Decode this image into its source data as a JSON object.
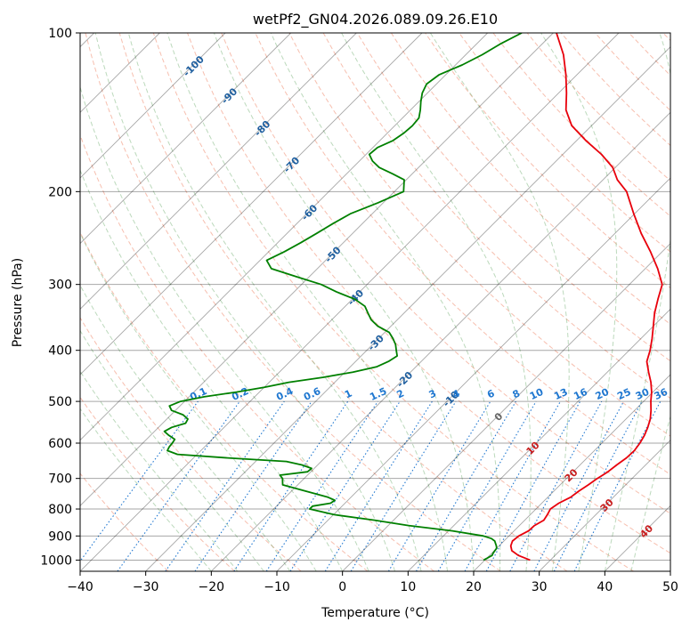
{
  "chart_data": {
    "type": "line",
    "title": "wetPf2_GN04.2026.089.09.26.E10",
    "xlabel": "Temperature (°C)",
    "ylabel": "Pressure (hPa)",
    "xlim": [
      -40,
      50
    ],
    "ylim": [
      1050,
      100
    ],
    "y_scale": "log",
    "grid": true,
    "x_ticks": [
      "−40",
      "−30",
      "−20",
      "−10",
      "0",
      "10",
      "20",
      "30",
      "40",
      "50"
    ],
    "y_ticks": [
      {
        "p": 100,
        "label": "100"
      },
      {
        "p": 200,
        "label": "200"
      },
      {
        "p": 300,
        "label": "300"
      },
      {
        "p": 400,
        "label": "400"
      },
      {
        "p": 500,
        "label": "500"
      },
      {
        "p": 600,
        "label": "600"
      },
      {
        "p": 700,
        "label": "700"
      },
      {
        "p": 800,
        "label": "800"
      },
      {
        "p": 900,
        "label": "900"
      },
      {
        "p": 1000,
        "label": "1000"
      }
    ],
    "isotherm_labels": [
      {
        "t": -100,
        "label": "-100"
      },
      {
        "t": -90,
        "label": "-90"
      },
      {
        "t": -80,
        "label": "-80"
      },
      {
        "t": -70,
        "label": "-70"
      },
      {
        "t": -60,
        "label": "-60"
      },
      {
        "t": -50,
        "label": "-50"
      },
      {
        "t": -40,
        "label": "-40"
      },
      {
        "t": -30,
        "label": "-30"
      },
      {
        "t": -20,
        "label": "-20"
      },
      {
        "t": -10,
        "label": "-10"
      },
      {
        "t": 0,
        "label": "0"
      },
      {
        "t": 10,
        "label": "10"
      },
      {
        "t": 20,
        "label": "20"
      },
      {
        "t": 30,
        "label": "30"
      },
      {
        "t": 40,
        "label": "40"
      }
    ],
    "mixing_ratio_labels": [
      "0.1",
      "0.2",
      "0.4",
      "0.6",
      "1",
      "1.5",
      "2",
      "3",
      "4",
      "6",
      "8",
      "10",
      "13",
      "16",
      "20",
      "25",
      "30",
      "36"
    ],
    "series": [
      {
        "role": "temperature",
        "color": "#e8000b",
        "points": [
          [
            1000,
            26.9
          ],
          [
            980,
            24.4
          ],
          [
            960,
            22.7
          ],
          [
            940,
            21.8
          ],
          [
            920,
            21.3
          ],
          [
            900,
            21.5
          ],
          [
            880,
            22.2
          ],
          [
            860,
            22.3
          ],
          [
            840,
            22.9
          ],
          [
            820,
            22.6
          ],
          [
            800,
            22.2
          ],
          [
            780,
            22.6
          ],
          [
            760,
            23.5
          ],
          [
            740,
            23.8
          ],
          [
            720,
            24.3
          ],
          [
            700,
            24.7
          ],
          [
            680,
            25.3
          ],
          [
            660,
            25.6
          ],
          [
            640,
            26.0
          ],
          [
            620,
            26.1
          ],
          [
            600,
            25.8
          ],
          [
            580,
            25.3
          ],
          [
            560,
            24.6
          ],
          [
            540,
            23.7
          ],
          [
            520,
            22.5
          ],
          [
            500,
            21.1
          ],
          [
            480,
            19.8
          ],
          [
            460,
            18.2
          ],
          [
            440,
            16.3
          ],
          [
            420,
            14.4
          ],
          [
            400,
            13.2
          ],
          [
            380,
            11.7
          ],
          [
            360,
            10.0
          ],
          [
            340,
            8.2
          ],
          [
            320,
            6.6
          ],
          [
            300,
            5.0
          ],
          [
            280,
            1.9
          ],
          [
            260,
            -1.8
          ],
          [
            240,
            -6.0
          ],
          [
            220,
            -10.2
          ],
          [
            200,
            -14.6
          ],
          [
            190,
            -17.8
          ],
          [
            180,
            -20.4
          ],
          [
            170,
            -24.1
          ],
          [
            160,
            -28.6
          ],
          [
            150,
            -33.0
          ],
          [
            140,
            -36.3
          ],
          [
            130,
            -38.8
          ],
          [
            120,
            -41.7
          ],
          [
            110,
            -45.1
          ],
          [
            100,
            -49.5
          ]
        ]
      },
      {
        "role": "dewpoint",
        "color": "#008000",
        "points": [
          [
            1000,
            19.8
          ],
          [
            990,
            20.1
          ],
          [
            980,
            20.4
          ],
          [
            970,
            20.2
          ],
          [
            960,
            20.1
          ],
          [
            950,
            20.0
          ],
          [
            940,
            19.6
          ],
          [
            930,
            19.1
          ],
          [
            920,
            18.6
          ],
          [
            910,
            17.7
          ],
          [
            900,
            16.1
          ],
          [
            880,
            10.6
          ],
          [
            860,
            3.1
          ],
          [
            840,
            -2.9
          ],
          [
            820,
            -9.9
          ],
          [
            800,
            -14.5
          ],
          [
            790,
            -14.5
          ],
          [
            780,
            -12.2
          ],
          [
            770,
            -12.0
          ],
          [
            760,
            -13.5
          ],
          [
            740,
            -17.8
          ],
          [
            720,
            -22.3
          ],
          [
            700,
            -23.3
          ],
          [
            690,
            -24.2
          ],
          [
            680,
            -20.5
          ],
          [
            670,
            -20.4
          ],
          [
            660,
            -22.4
          ],
          [
            650,
            -25.3
          ],
          [
            640,
            -34.8
          ],
          [
            630,
            -43.0
          ],
          [
            620,
            -45.1
          ],
          [
            610,
            -45.4
          ],
          [
            600,
            -45.5
          ],
          [
            590,
            -45.7
          ],
          [
            580,
            -47.2
          ],
          [
            570,
            -48.5
          ],
          [
            560,
            -48.0
          ],
          [
            550,
            -46.5
          ],
          [
            540,
            -46.8
          ],
          [
            530,
            -48.2
          ],
          [
            520,
            -50.6
          ],
          [
            510,
            -51.6
          ],
          [
            500,
            -50.6
          ],
          [
            490,
            -47.7
          ],
          [
            480,
            -43.5
          ],
          [
            470,
            -40.0
          ],
          [
            460,
            -37.0
          ],
          [
            450,
            -32.5
          ],
          [
            440,
            -28.8
          ],
          [
            430,
            -26.0
          ],
          [
            420,
            -25.0
          ],
          [
            410,
            -24.5
          ],
          [
            400,
            -25.5
          ],
          [
            390,
            -26.5
          ],
          [
            380,
            -27.8
          ],
          [
            370,
            -29.3
          ],
          [
            360,
            -32.0
          ],
          [
            350,
            -34.0
          ],
          [
            340,
            -35.5
          ],
          [
            330,
            -37.0
          ],
          [
            320,
            -39.6
          ],
          [
            310,
            -43.5
          ],
          [
            300,
            -47.0
          ],
          [
            290,
            -52.0
          ],
          [
            280,
            -57.0
          ],
          [
            270,
            -59.0
          ],
          [
            260,
            -57.6
          ],
          [
            250,
            -56.5
          ],
          [
            240,
            -55.5
          ],
          [
            230,
            -54.5
          ],
          [
            220,
            -53.3
          ],
          [
            210,
            -50.8
          ],
          [
            200,
            -48.6
          ],
          [
            190,
            -50.3
          ],
          [
            185,
            -53.0
          ],
          [
            180,
            -56.0
          ],
          [
            175,
            -58.0
          ],
          [
            170,
            -59.5
          ],
          [
            165,
            -59.3
          ],
          [
            160,
            -58.0
          ],
          [
            155,
            -57.5
          ],
          [
            150,
            -57.3
          ],
          [
            145,
            -57.5
          ],
          [
            140,
            -58.5
          ],
          [
            135,
            -59.7
          ],
          [
            130,
            -60.8
          ],
          [
            125,
            -61.5
          ],
          [
            120,
            -61.0
          ],
          [
            115,
            -59.0
          ],
          [
            110,
            -57.5
          ],
          [
            105,
            -56.4
          ],
          [
            100,
            -54.8
          ]
        ]
      }
    ]
  }
}
